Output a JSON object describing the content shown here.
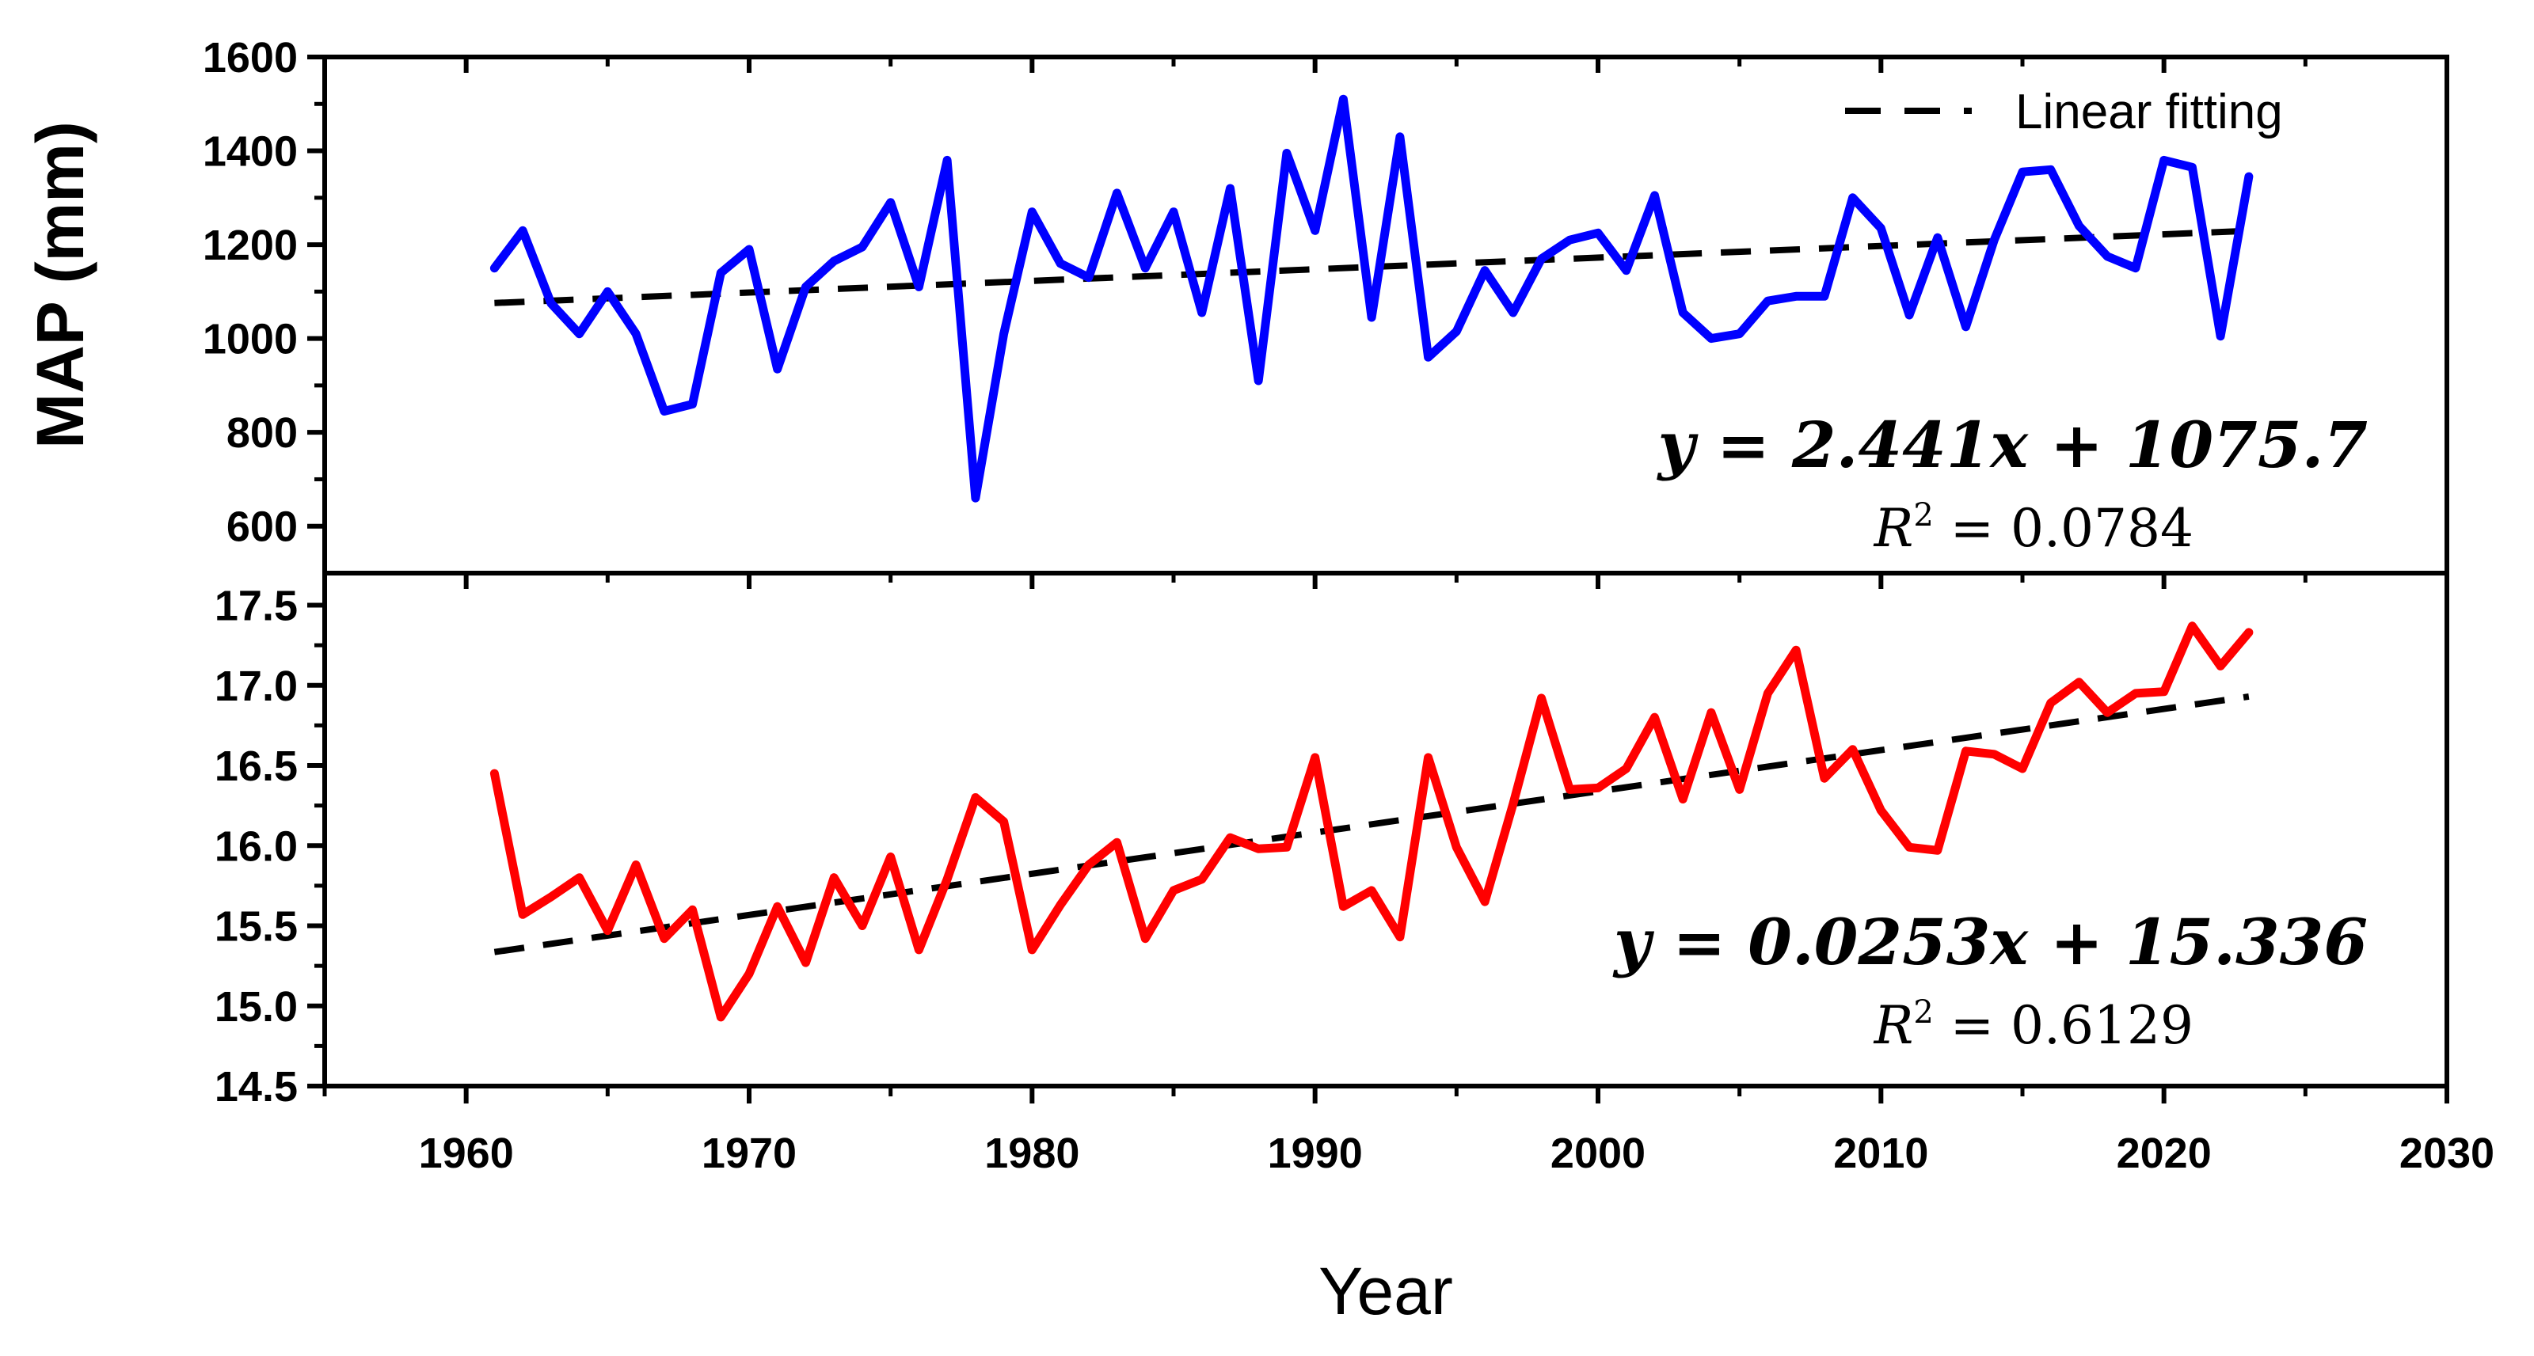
{
  "chart_data": [
    {
      "type": "line",
      "panel": "top",
      "ylabel": "MAP (mm)",
      "xlabel": "Year",
      "xlim": [
        1955,
        2030
      ],
      "ylim": [
        500,
        1600
      ],
      "yticks": [
        600,
        800,
        1000,
        1200,
        1400,
        1600
      ],
      "ytick_labels": [
        "600",
        "800",
        "1000",
        "1200",
        "1400",
        "1600"
      ],
      "color": "#0000ff",
      "x": [
        1961,
        1962,
        1963,
        1964,
        1965,
        1966,
        1967,
        1968,
        1969,
        1970,
        1971,
        1972,
        1973,
        1974,
        1975,
        1976,
        1977,
        1978,
        1979,
        1980,
        1981,
        1982,
        1983,
        1984,
        1985,
        1986,
        1987,
        1988,
        1989,
        1990,
        1991,
        1992,
        1993,
        1994,
        1995,
        1996,
        1997,
        1998,
        1999,
        2000,
        2001,
        2002,
        2003,
        2004,
        2005,
        2006,
        2007,
        2008,
        2009,
        2010,
        2011,
        2012,
        2013,
        2014,
        2015,
        2016,
        2017,
        2018,
        2019,
        2020,
        2021,
        2022,
        2023
      ],
      "values": [
        1150,
        1230,
        1075,
        1010,
        1100,
        1010,
        845,
        860,
        1140,
        1190,
        935,
        1110,
        1165,
        1195,
        1290,
        1110,
        1380,
        660,
        1010,
        1270,
        1160,
        1130,
        1310,
        1150,
        1270,
        1055,
        1320,
        910,
        1395,
        1230,
        1510,
        1045,
        1430,
        960,
        1015,
        1145,
        1055,
        1170,
        1210,
        1225,
        1145,
        1305,
        1055,
        1000,
        1010,
        1080,
        1090,
        1090,
        1300,
        1235,
        1050,
        1215,
        1025,
        1210,
        1355,
        1360,
        1240,
        1175,
        1150,
        1380,
        1365,
        1005,
        1345
      ],
      "fit": {
        "slope": 2.441,
        "intercept": 1075.7,
        "x_start": 1961,
        "x_end": 2023
      },
      "equation": "y = 2.441x + 1075.7",
      "r2_label": "R",
      "r2_sup": "2",
      "r2_value": " = 0.0784",
      "legend": {
        "label": "Linear fitting",
        "position": "top-right"
      }
    },
    {
      "type": "line",
      "panel": "bottom",
      "xlabel": "Year",
      "xlim": [
        1955,
        2030
      ],
      "ylim": [
        14.5,
        17.7
      ],
      "yticks": [
        14.5,
        15.0,
        15.5,
        16.0,
        16.5,
        17.0,
        17.5
      ],
      "ytick_labels": [
        "14.5",
        "15.0",
        "15.5",
        "16.0",
        "16.5",
        "17.0",
        "17.5"
      ],
      "xticks": [
        1960,
        1970,
        1980,
        1990,
        2000,
        2010,
        2020,
        2030
      ],
      "xtick_labels": [
        "1960",
        "1970",
        "1980",
        "1990",
        "2000",
        "2010",
        "2020",
        "2030"
      ],
      "color": "#ff0000",
      "x": [
        1961,
        1962,
        1963,
        1964,
        1965,
        1966,
        1967,
        1968,
        1969,
        1970,
        1971,
        1972,
        1973,
        1974,
        1975,
        1976,
        1977,
        1978,
        1979,
        1980,
        1981,
        1982,
        1983,
        1984,
        1985,
        1986,
        1987,
        1988,
        1989,
        1990,
        1991,
        1992,
        1993,
        1994,
        1995,
        1996,
        1997,
        1998,
        1999,
        2000,
        2001,
        2002,
        2003,
        2004,
        2005,
        2006,
        2007,
        2008,
        2009,
        2010,
        2011,
        2012,
        2013,
        2014,
        2015,
        2016,
        2017,
        2018,
        2019,
        2020,
        2021,
        2022,
        2023
      ],
      "values": [
        16.45,
        15.57,
        15.68,
        15.8,
        15.47,
        15.88,
        15.42,
        15.6,
        14.93,
        15.2,
        15.62,
        15.27,
        15.8,
        15.5,
        15.93,
        15.35,
        15.79,
        16.3,
        16.15,
        15.35,
        15.63,
        15.88,
        16.02,
        15.42,
        15.72,
        15.79,
        16.05,
        15.98,
        15.99,
        16.55,
        15.62,
        15.72,
        15.43,
        16.55,
        15.99,
        15.65,
        16.26,
        16.92,
        16.35,
        16.36,
        16.48,
        16.8,
        16.29,
        16.83,
        16.35,
        16.95,
        17.22,
        16.42,
        16.6,
        16.22,
        15.99,
        15.97,
        16.59,
        16.57,
        16.48,
        16.89,
        17.02,
        16.83,
        16.95,
        16.96,
        17.37,
        17.12,
        17.33
      ],
      "fit": {
        "slope": 0.0253,
        "intercept": 15.336,
        "x_start": 1961,
        "x_end": 2023
      },
      "equation": "y = 0.0253x + 15.336",
      "r2_label": "R",
      "r2_sup": "2",
      "r2_value": " = 0.6129"
    }
  ]
}
